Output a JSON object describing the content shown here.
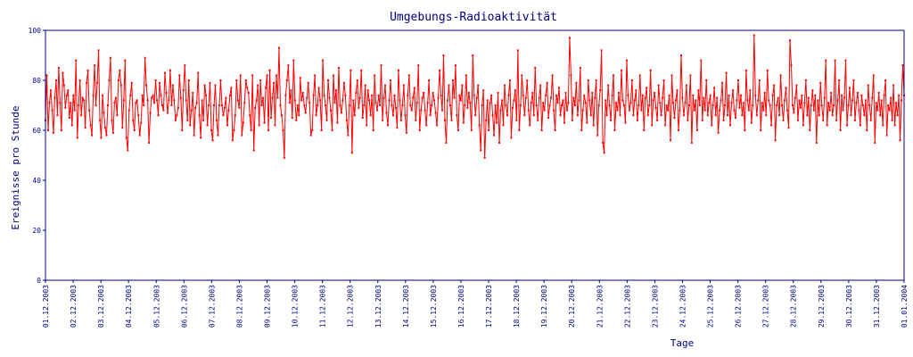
{
  "chart_data": {
    "type": "line",
    "title": "Umgebungs-Radioaktivität",
    "xlabel": "Tage",
    "ylabel": "Ereignisse pro Stunde",
    "ylim": [
      0,
      100
    ],
    "yticks": [
      0,
      20,
      40,
      60,
      80,
      100
    ],
    "x_tick_labels": [
      "01.12.2003",
      "02.12.2003",
      "03.12.2003",
      "04.12.2003",
      "05.12.2003",
      "06.12.2003",
      "07.12.2003",
      "08.12.2003",
      "09.12.2003",
      "10.12.2003",
      "11.12.2003",
      "12.12.2003",
      "13.12.2003",
      "14.12.2003",
      "15.12.2003",
      "16.12.2003",
      "17.12.2003",
      "18.12.2003",
      "19.12.2003",
      "20.12.2003",
      "21.12.2003",
      "22.12.2003",
      "23.12.2003",
      "24.12.2003",
      "25.12.2003",
      "26.12.2003",
      "27.12.2003",
      "28.12.2003",
      "29.12.2003",
      "30.12.2003",
      "31.12.2003",
      "01.01.2004"
    ],
    "grid": false,
    "line_color": "#ff0000",
    "axis_color": "#000080",
    "series": [
      {
        "values": [
          64,
          82,
          60,
          71,
          76,
          68,
          59,
          73,
          80,
          66,
          85,
          71,
          60,
          83,
          78,
          69,
          74,
          76,
          65,
          71,
          62,
          74,
          68,
          88,
          57,
          70,
          80,
          66,
          73,
          72,
          61,
          79,
          84,
          68,
          62,
          58,
          74,
          86,
          70,
          79,
          92,
          64,
          57,
          74,
          67,
          61,
          58,
          70,
          80,
          89,
          64,
          59,
          71,
          73,
          66,
          80,
          84,
          78,
          61,
          72,
          88,
          57,
          52,
          68,
          74,
          79,
          64,
          60,
          71,
          72,
          66,
          58,
          63,
          74,
          70,
          89,
          78,
          72,
          55,
          67,
          73,
          74,
          71,
          80,
          72,
          66,
          79,
          74,
          70,
          68,
          83,
          75,
          67,
          72,
          84,
          70,
          78,
          72,
          64,
          66,
          69,
          82,
          73,
          60,
          76,
          86,
          72,
          64,
          80,
          62,
          68,
          75,
          58,
          69,
          71,
          83,
          66,
          57,
          72,
          64,
          78,
          74,
          62,
          70,
          79,
          60,
          56,
          70,
          78,
          64,
          58,
          70,
          80,
          70,
          66,
          69,
          73,
          62,
          68,
          74,
          77,
          56,
          60,
          66,
          80,
          72,
          69,
          82,
          58,
          63,
          71,
          80,
          77,
          75,
          66,
          60,
          82,
          52,
          69,
          72,
          78,
          62,
          80,
          70,
          73,
          63,
          77,
          82,
          60,
          84,
          65,
          73,
          79,
          62,
          82,
          73,
          93,
          70,
          66,
          60,
          49,
          74,
          80,
          86,
          71,
          76,
          65,
          88,
          72,
          64,
          70,
          66,
          81,
          72,
          75,
          70,
          67,
          73,
          79,
          71,
          58,
          60,
          74,
          82,
          66,
          70,
          77,
          72,
          60,
          88,
          74,
          70,
          64,
          80,
          73,
          68,
          60,
          82,
          71,
          76,
          63,
          85,
          70,
          67,
          72,
          79,
          74,
          64,
          58,
          70,
          84,
          51,
          72,
          66,
          75,
          80,
          69,
          73,
          84,
          65,
          70,
          78,
          62,
          76,
          72,
          66,
          74,
          60,
          82,
          71,
          68,
          74,
          70,
          86,
          64,
          73,
          78,
          67,
          62,
          72,
          80,
          70,
          66,
          74,
          69,
          61,
          84,
          72,
          64,
          70,
          78,
          66,
          59,
          74,
          82,
          70,
          68,
          73,
          77,
          64,
          71,
          86,
          60,
          68,
          73,
          75,
          68,
          62,
          71,
          80,
          66,
          70,
          75,
          72,
          67,
          62,
          73,
          84,
          74,
          68,
          90,
          64,
          55,
          72,
          78,
          70,
          64,
          80,
          73,
          86,
          66,
          60,
          74,
          72,
          78,
          63,
          70,
          82,
          69,
          75,
          71,
          60,
          90,
          74,
          66,
          73,
          78,
          62,
          52,
          70,
          76,
          49,
          64,
          72,
          60,
          71,
          74,
          66,
          58,
          70,
          63,
          75,
          55,
          68,
          72,
          62,
          78,
          70,
          66,
          74,
          80,
          57,
          69,
          72,
          76,
          64,
          92,
          60,
          70,
          82,
          74,
          66,
          73,
          80,
          68,
          62,
          71,
          75,
          66,
          85,
          70,
          64,
          73,
          78,
          60,
          71,
          68,
          74,
          79,
          65,
          70,
          73,
          82,
          68,
          60,
          74,
          71,
          77,
          66,
          70,
          72,
          63,
          75,
          68,
          71,
          97,
          82,
          64,
          73,
          70,
          79,
          66,
          72,
          85,
          60,
          68,
          74,
          71,
          63,
          80,
          72,
          66,
          75,
          62,
          73,
          80,
          58,
          70,
          76,
          92,
          55,
          51,
          72,
          66,
          78,
          70,
          64,
          74,
          82,
          60,
          71,
          68,
          75,
          66,
          84,
          72,
          70,
          63,
          88,
          74,
          68,
          71,
          80,
          66,
          72,
          76,
          64,
          70,
          82,
          68,
          74,
          60,
          73,
          77,
          66,
          70,
          84,
          62,
          72,
          75,
          69,
          64,
          78,
          71,
          66,
          73,
          80,
          62,
          70,
          68,
          74,
          56,
          82,
          71,
          65,
          72,
          76,
          60,
          68,
          90,
          73,
          66,
          71,
          78,
          64,
          70,
          82,
          55,
          74,
          68,
          72,
          60,
          76,
          70,
          88,
          64,
          73,
          68,
          80,
          66,
          71,
          74,
          62,
          70,
          77,
          66,
          73,
          59,
          68,
          72,
          79,
          64,
          70,
          83,
          66,
          74,
          62,
          71,
          76,
          68,
          65,
          72,
          80,
          69,
          74,
          66,
          71,
          60,
          84,
          72,
          68,
          76,
          63,
          70,
          98,
          74,
          66,
          72,
          80,
          60,
          71,
          68,
          75,
          66,
          84,
          72,
          70,
          62,
          74,
          78,
          56,
          70,
          73,
          66,
          82,
          70,
          64,
          72,
          77,
          68,
          61,
          96,
          86,
          70,
          67,
          73,
          78,
          64,
          72,
          69,
          74,
          62,
          71,
          80,
          66,
          73,
          60,
          70,
          76,
          68,
          74,
          55,
          72,
          66,
          79,
          70,
          64,
          73,
          88,
          62,
          71,
          68,
          75,
          66,
          70,
          88,
          64,
          72,
          80,
          60,
          74,
          68,
          73,
          88,
          62,
          70,
          77,
          66,
          72,
          80,
          64,
          71,
          75,
          68,
          62,
          74,
          70,
          66,
          72,
          60,
          78,
          70,
          64,
          73,
          82,
          55,
          71,
          68,
          75,
          66,
          72,
          62,
          74,
          80,
          58,
          70,
          68,
          73,
          64,
          78,
          62,
          71,
          66,
          74,
          56,
          72,
          86,
          74
        ]
      }
    ]
  }
}
